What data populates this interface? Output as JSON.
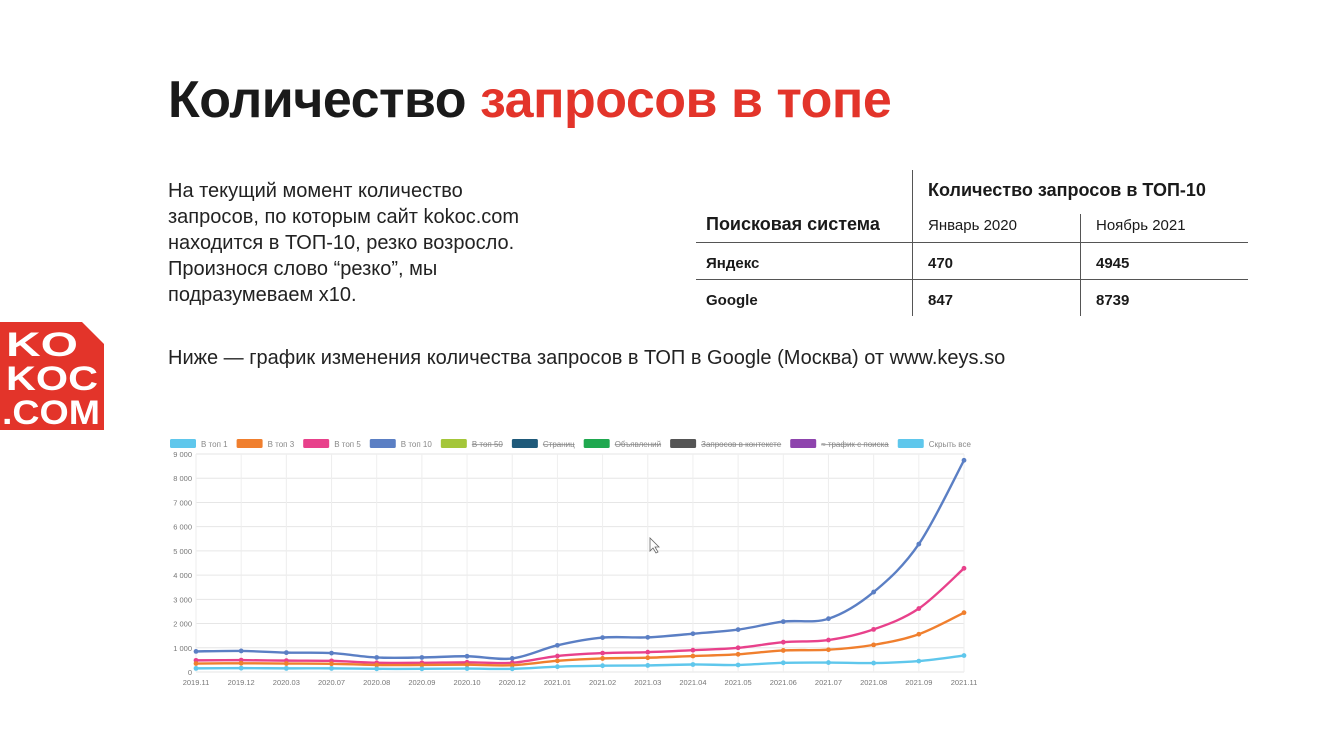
{
  "slide": {
    "title_main": "Количество",
    "title_accent": "запросов в топе",
    "intro_lines": [
      "На текущий момент количество",
      "запросов, по которым сайт kokoc.com",
      "находится в ТОП-10, резко возросло.",
      "Произнося слово “резко”, мы",
      "подразумеваем x10."
    ],
    "subtitle": "Ниже — график изменения количества запросов в ТОП в Google (Москва) от www.keys.so"
  },
  "logo": {
    "lines": [
      "KO",
      "KOC",
      ".COM"
    ],
    "color": "#e3342a"
  },
  "stats_table": {
    "group_header": "Количество запросов в ТОП-10",
    "row_header": "Поисковая система",
    "columns": [
      "Январь 2020",
      "Ноябрь 2021"
    ],
    "rows": [
      {
        "engine": "Яндекс",
        "values": [
          "470",
          "4945"
        ]
      },
      {
        "engine": "Google",
        "values": [
          "847",
          "8739"
        ]
      }
    ]
  },
  "chart_data": {
    "type": "line",
    "legend": [
      {
        "label": "В топ 1",
        "color": "#5fc7ec",
        "active": true
      },
      {
        "label": "В топ 3",
        "color": "#f07f2e",
        "active": true
      },
      {
        "label": "В топ 5",
        "color": "#e8418b",
        "active": true
      },
      {
        "label": "В топ 10",
        "color": "#5b7fc4",
        "active": true
      },
      {
        "label": "В топ 50",
        "color": "#a4c639",
        "active": false
      },
      {
        "label": "Страниц",
        "color": "#1f5a7a",
        "active": false
      },
      {
        "label": "Объявлений",
        "color": "#1fa84f",
        "active": false
      },
      {
        "label": "Запросов в контексте",
        "color": "#555555",
        "active": false
      },
      {
        "label": "≈ трафик с поиска",
        "color": "#8e44ad",
        "active": false
      },
      {
        "label": "Скрыть все",
        "color": "#5fc7ec",
        "active": true
      }
    ],
    "categories": [
      "2019.11",
      "2019.12",
      "2020.03",
      "2020.07",
      "2020.08",
      "2020.09",
      "2020.10",
      "2020.12",
      "2021.01",
      "2021.02",
      "2021.03",
      "2021.04",
      "2021.05",
      "2021.06",
      "2021.07",
      "2021.08",
      "2021.09",
      "2021.11"
    ],
    "series": [
      {
        "name": "В топ 10",
        "color": "#5b7fc4",
        "values": [
          850,
          870,
          800,
          780,
          600,
          600,
          650,
          560,
          1100,
          1420,
          1430,
          1580,
          1750,
          2080,
          2200,
          3300,
          5280,
          8739
        ]
      },
      {
        "name": "В топ 5",
        "color": "#e8418b",
        "values": [
          480,
          490,
          470,
          460,
          380,
          380,
          400,
          380,
          660,
          780,
          820,
          900,
          1000,
          1230,
          1320,
          1760,
          2620,
          4280
        ]
      },
      {
        "name": "В топ 3",
        "color": "#f07f2e",
        "values": [
          350,
          360,
          350,
          340,
          290,
          290,
          300,
          280,
          460,
          560,
          590,
          660,
          730,
          890,
          920,
          1120,
          1560,
          2450
        ]
      },
      {
        "name": "В топ 1",
        "color": "#5fc7ec",
        "values": [
          150,
          160,
          150,
          150,
          130,
          130,
          140,
          130,
          220,
          260,
          270,
          310,
          290,
          380,
          390,
          370,
          450,
          680
        ]
      }
    ],
    "yticks": [
      "0",
      "1 000",
      "2 000",
      "3 000",
      "4 000",
      "5 000",
      "6 000",
      "7 000",
      "8 000",
      "9 000"
    ],
    "ylim": [
      0,
      9000
    ],
    "grid": true,
    "legend_position": "top"
  }
}
